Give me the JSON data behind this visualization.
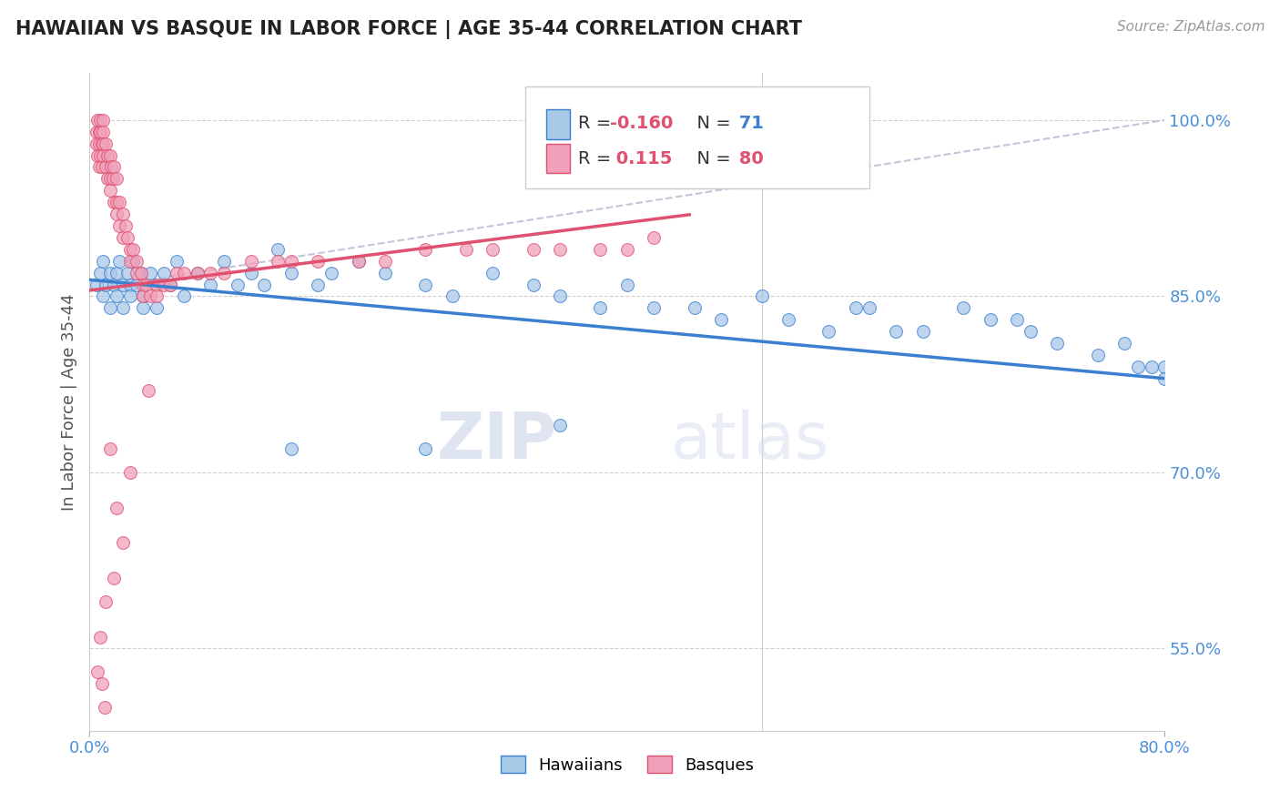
{
  "title": "HAWAIIAN VS BASQUE IN LABOR FORCE | AGE 35-44 CORRELATION CHART",
  "source_text": "Source: ZipAtlas.com",
  "ylabel": "In Labor Force | Age 35-44",
  "xlim": [
    0.0,
    0.8
  ],
  "ylim": [
    0.48,
    1.04
  ],
  "yticks": [
    0.55,
    0.7,
    0.85,
    1.0
  ],
  "yticklabels": [
    "55.0%",
    "70.0%",
    "85.0%",
    "100.0%"
  ],
  "legend_r_hawaiian": "-0.160",
  "legend_n_hawaiian": "71",
  "legend_r_basque": "0.115",
  "legend_n_basque": "80",
  "hawaiian_color": "#a8c8e8",
  "basque_color": "#f0a0b8",
  "hawaiian_line_color": "#3a7fd0",
  "basque_line_color": "#e05070",
  "overall_line_color": "#c0c8d8",
  "watermark_zip": "ZIP",
  "watermark_atlas": "atlas",
  "hawaiian_x": [
    0.005,
    0.008,
    0.01,
    0.01,
    0.012,
    0.015,
    0.015,
    0.018,
    0.02,
    0.02,
    0.022,
    0.025,
    0.025,
    0.028,
    0.03,
    0.03,
    0.032,
    0.035,
    0.038,
    0.04,
    0.04,
    0.045,
    0.05,
    0.05,
    0.055,
    0.06,
    0.065,
    0.07,
    0.08,
    0.09,
    0.1,
    0.11,
    0.12,
    0.13,
    0.14,
    0.15,
    0.17,
    0.18,
    0.2,
    0.22,
    0.25,
    0.27,
    0.3,
    0.33,
    0.35,
    0.38,
    0.4,
    0.42,
    0.45,
    0.47,
    0.5,
    0.52,
    0.55,
    0.57,
    0.58,
    0.6,
    0.62,
    0.65,
    0.67,
    0.69,
    0.7,
    0.72,
    0.75,
    0.77,
    0.78,
    0.79,
    0.8,
    0.8,
    0.15,
    0.25,
    0.35
  ],
  "hawaiian_y": [
    0.86,
    0.87,
    0.85,
    0.88,
    0.86,
    0.87,
    0.84,
    0.86,
    0.87,
    0.85,
    0.88,
    0.86,
    0.84,
    0.87,
    0.86,
    0.85,
    0.88,
    0.86,
    0.87,
    0.85,
    0.84,
    0.87,
    0.86,
    0.84,
    0.87,
    0.86,
    0.88,
    0.85,
    0.87,
    0.86,
    0.88,
    0.86,
    0.87,
    0.86,
    0.89,
    0.87,
    0.86,
    0.87,
    0.88,
    0.87,
    0.86,
    0.85,
    0.87,
    0.86,
    0.85,
    0.84,
    0.86,
    0.84,
    0.84,
    0.83,
    0.85,
    0.83,
    0.82,
    0.84,
    0.84,
    0.82,
    0.82,
    0.84,
    0.83,
    0.83,
    0.82,
    0.81,
    0.8,
    0.81,
    0.79,
    0.79,
    0.79,
    0.78,
    0.72,
    0.72,
    0.74
  ],
  "basque_x": [
    0.005,
    0.005,
    0.006,
    0.006,
    0.007,
    0.007,
    0.007,
    0.008,
    0.008,
    0.008,
    0.009,
    0.009,
    0.01,
    0.01,
    0.01,
    0.01,
    0.012,
    0.012,
    0.013,
    0.013,
    0.015,
    0.015,
    0.015,
    0.016,
    0.017,
    0.018,
    0.018,
    0.02,
    0.02,
    0.02,
    0.022,
    0.022,
    0.025,
    0.025,
    0.027,
    0.028,
    0.03,
    0.03,
    0.032,
    0.035,
    0.035,
    0.038,
    0.04,
    0.04,
    0.042,
    0.045,
    0.05,
    0.05,
    0.055,
    0.06,
    0.065,
    0.07,
    0.08,
    0.09,
    0.1,
    0.12,
    0.14,
    0.15,
    0.17,
    0.2,
    0.22,
    0.25,
    0.28,
    0.3,
    0.33,
    0.35,
    0.38,
    0.4,
    0.42,
    0.044,
    0.015,
    0.03,
    0.02,
    0.025,
    0.018,
    0.012,
    0.008,
    0.006,
    0.009,
    0.011
  ],
  "basque_y": [
    0.99,
    0.98,
    1.0,
    0.97,
    0.99,
    0.98,
    0.96,
    1.0,
    0.99,
    0.97,
    0.98,
    0.96,
    1.0,
    0.99,
    0.98,
    0.97,
    0.98,
    0.96,
    0.97,
    0.95,
    0.97,
    0.95,
    0.94,
    0.96,
    0.95,
    0.96,
    0.93,
    0.95,
    0.93,
    0.92,
    0.93,
    0.91,
    0.92,
    0.9,
    0.91,
    0.9,
    0.89,
    0.88,
    0.89,
    0.88,
    0.87,
    0.87,
    0.86,
    0.85,
    0.86,
    0.85,
    0.86,
    0.85,
    0.86,
    0.86,
    0.87,
    0.87,
    0.87,
    0.87,
    0.87,
    0.88,
    0.88,
    0.88,
    0.88,
    0.88,
    0.88,
    0.89,
    0.89,
    0.89,
    0.89,
    0.89,
    0.89,
    0.89,
    0.9,
    0.77,
    0.72,
    0.7,
    0.67,
    0.64,
    0.61,
    0.59,
    0.56,
    0.53,
    0.52,
    0.5
  ]
}
